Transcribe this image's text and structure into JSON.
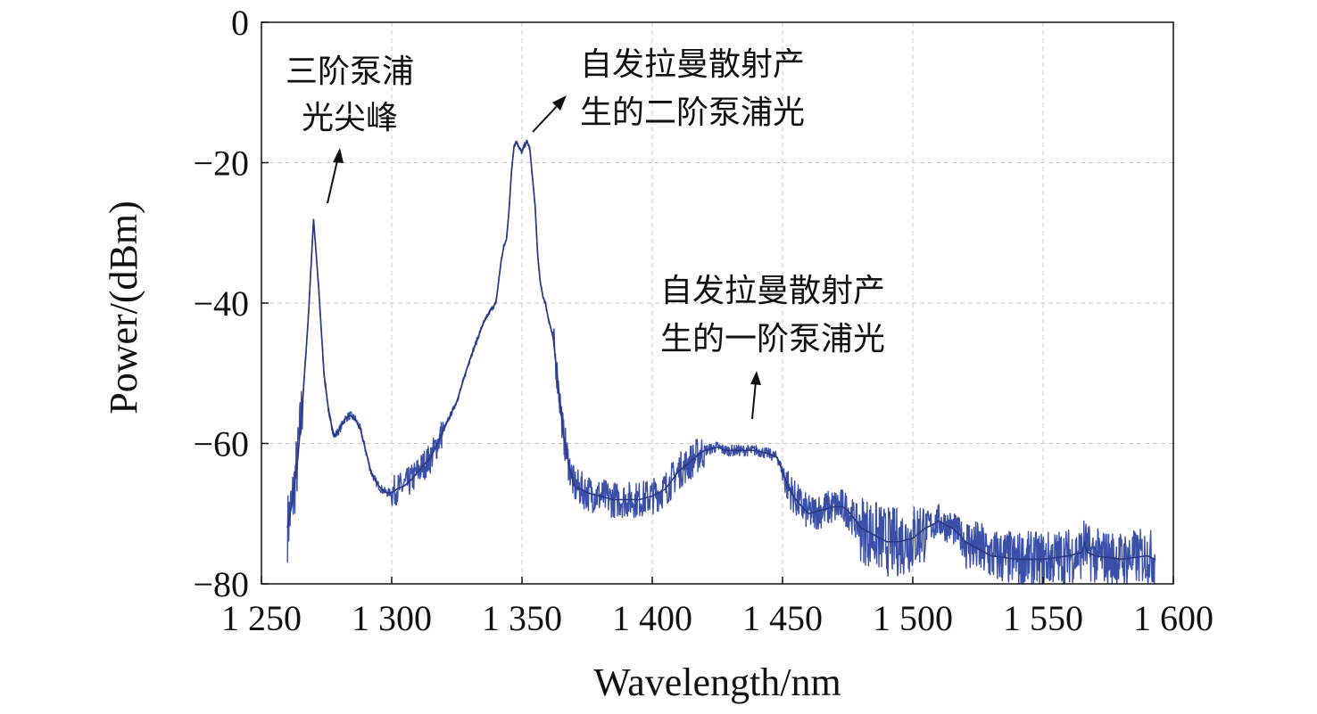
{
  "chart_data": {
    "type": "line",
    "title": "",
    "xlabel": "Wavelength/nm",
    "ylabel": "Power/(dBm)",
    "xlim": [
      1250,
      1600
    ],
    "ylim": [
      -80,
      0
    ],
    "xticks": [
      1250,
      1300,
      1350,
      1400,
      1450,
      1500,
      1550,
      1600
    ],
    "xtick_labels": [
      "1 250",
      "1 300",
      "1 350",
      "1 400",
      "1 450",
      "1 500",
      "1 550",
      "1 600"
    ],
    "yticks": [
      0,
      -20,
      -40,
      -60,
      -80
    ],
    "ytick_labels": [
      "0",
      "−20",
      "−40",
      "−60",
      "−80"
    ],
    "grid": true,
    "line_color": "#3a4fa8",
    "series": [
      {
        "x": [
          1260,
          1262,
          1264,
          1266,
          1268,
          1270,
          1272,
          1274,
          1276,
          1278,
          1280,
          1282,
          1284,
          1286,
          1288,
          1290,
          1292,
          1294,
          1296,
          1298,
          1300,
          1302,
          1305,
          1308,
          1310,
          1315,
          1320,
          1325,
          1330,
          1335,
          1338,
          1340,
          1342,
          1343,
          1344,
          1345,
          1346,
          1347,
          1348,
          1349,
          1350,
          1351,
          1352,
          1353,
          1354,
          1355,
          1356,
          1357,
          1358,
          1359,
          1360,
          1362,
          1364,
          1366,
          1368,
          1370,
          1375,
          1380,
          1385,
          1390,
          1395,
          1400,
          1405,
          1410,
          1415,
          1418,
          1420,
          1425,
          1428,
          1430,
          1435,
          1440,
          1445,
          1448,
          1450,
          1452,
          1455,
          1460,
          1465,
          1470,
          1473,
          1475,
          1478,
          1480,
          1485,
          1490,
          1495,
          1500,
          1505,
          1508,
          1510,
          1512,
          1515,
          1518,
          1520,
          1525,
          1530,
          1540,
          1550,
          1560,
          1565,
          1566,
          1567,
          1570,
          1580,
          1590,
          1593
        ],
        "y": [
          -72,
          -68,
          -62,
          -53,
          -42,
          -28,
          -38,
          -50,
          -56,
          -59,
          -58,
          -56.5,
          -56,
          -56.5,
          -58,
          -61,
          -64,
          -65.5,
          -66.5,
          -67,
          -67,
          -66.5,
          -66,
          -65,
          -64,
          -62,
          -58,
          -54,
          -48,
          -43,
          -41,
          -40,
          -34,
          -32,
          -31,
          -27,
          -21,
          -17.5,
          -17,
          -18,
          -18.5,
          -17.5,
          -17,
          -18,
          -22,
          -26,
          -33,
          -37,
          -39,
          -40,
          -42,
          -45,
          -52,
          -59,
          -63,
          -66,
          -67,
          -67.5,
          -68,
          -68,
          -68,
          -67.5,
          -66.5,
          -64,
          -62.5,
          -61.5,
          -61,
          -60.5,
          -61,
          -61,
          -61,
          -61,
          -61.5,
          -62,
          -64,
          -66,
          -68,
          -70,
          -69.5,
          -69,
          -69,
          -69.5,
          -71,
          -72,
          -73,
          -74,
          -74,
          -73.5,
          -72,
          -71.5,
          -71,
          -71.5,
          -72,
          -73,
          -74,
          -75,
          -76,
          -76.5,
          -76.5,
          -76,
          -75.5,
          -74,
          -75.5,
          -76,
          -76.5,
          -76,
          -76.5
        ]
      }
    ],
    "annotations": [
      {
        "lines": [
          "三阶泵浦",
          "光尖峰"
        ]
      },
      {
        "lines": [
          "自发拉曼散射产",
          "生的二阶泵浦光"
        ]
      },
      {
        "lines": [
          "自发拉曼散射产",
          "生的一阶泵浦光"
        ]
      }
    ]
  }
}
